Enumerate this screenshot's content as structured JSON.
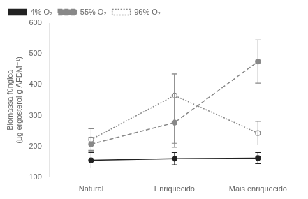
{
  "chart_data": {
    "type": "line",
    "categories": [
      "Natural",
      "Enriquecido",
      "Mais enriquecido"
    ],
    "series": [
      {
        "name": "4% O₂",
        "color": "#222222",
        "line_style": "solid",
        "marker": "circle",
        "values": [
          155,
          160,
          162
        ],
        "yerr_low": [
          25,
          20,
          18
        ],
        "yerr_high": [
          25,
          20,
          18
        ]
      },
      {
        "name": "55% O₂",
        "color": "#888888",
        "line_style": "dashed",
        "marker": "circle",
        "values": [
          207,
          277,
          475
        ],
        "yerr_low": [
          22,
          80,
          70
        ],
        "yerr_high": [
          22,
          155,
          70
        ]
      },
      {
        "name": "96% O₂",
        "color": "#888888",
        "line_style": "dotted",
        "marker": "open circle",
        "values": [
          222,
          365,
          243
        ],
        "yerr_low": [
          35,
          155,
          38
        ],
        "yerr_high": [
          35,
          70,
          38
        ]
      }
    ],
    "ylabel": "Biomassa fúngica\n(µg ergosterol g AFDM⁻¹)",
    "ylim": [
      100,
      600
    ],
    "yticks": [
      100,
      200,
      300,
      400,
      500,
      600
    ],
    "grid": false,
    "legend": "upper left"
  }
}
